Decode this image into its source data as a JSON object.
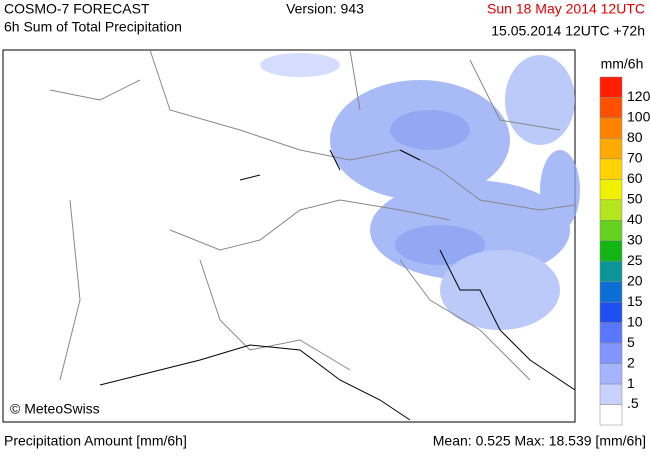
{
  "header": {
    "title": "COSMO-7 FORECAST",
    "subtitle": "6h Sum of Total Precipitation",
    "version": "Version: 943",
    "valid_time": "Sun 18 May 2014 12UTC",
    "run_time": "15.05.2014 12UTC +72h"
  },
  "map": {
    "credit": "© MeteoSwiss"
  },
  "legend": {
    "unit": "mm/6h",
    "labels": [
      "120",
      "100",
      "80",
      "70",
      "60",
      "50",
      "40",
      "30",
      "25",
      "20",
      "15",
      "10",
      "5",
      "2",
      "1",
      ".5"
    ],
    "colors": [
      "#ff1e00",
      "#ff5000",
      "#ff8200",
      "#ffaa00",
      "#ffd200",
      "#f0f000",
      "#b4e61e",
      "#64d21e",
      "#14b414",
      "#0a9696",
      "#0a6ed2",
      "#1e50f0",
      "#5a78ff",
      "#8296ff",
      "#a5b4ff",
      "#c8d2ff",
      "#ffffff"
    ]
  },
  "footer": {
    "left": "Precipitation Amount [mm/6h]",
    "right": "Mean:  0.525 Max:  18.539 [mm/6h]"
  }
}
